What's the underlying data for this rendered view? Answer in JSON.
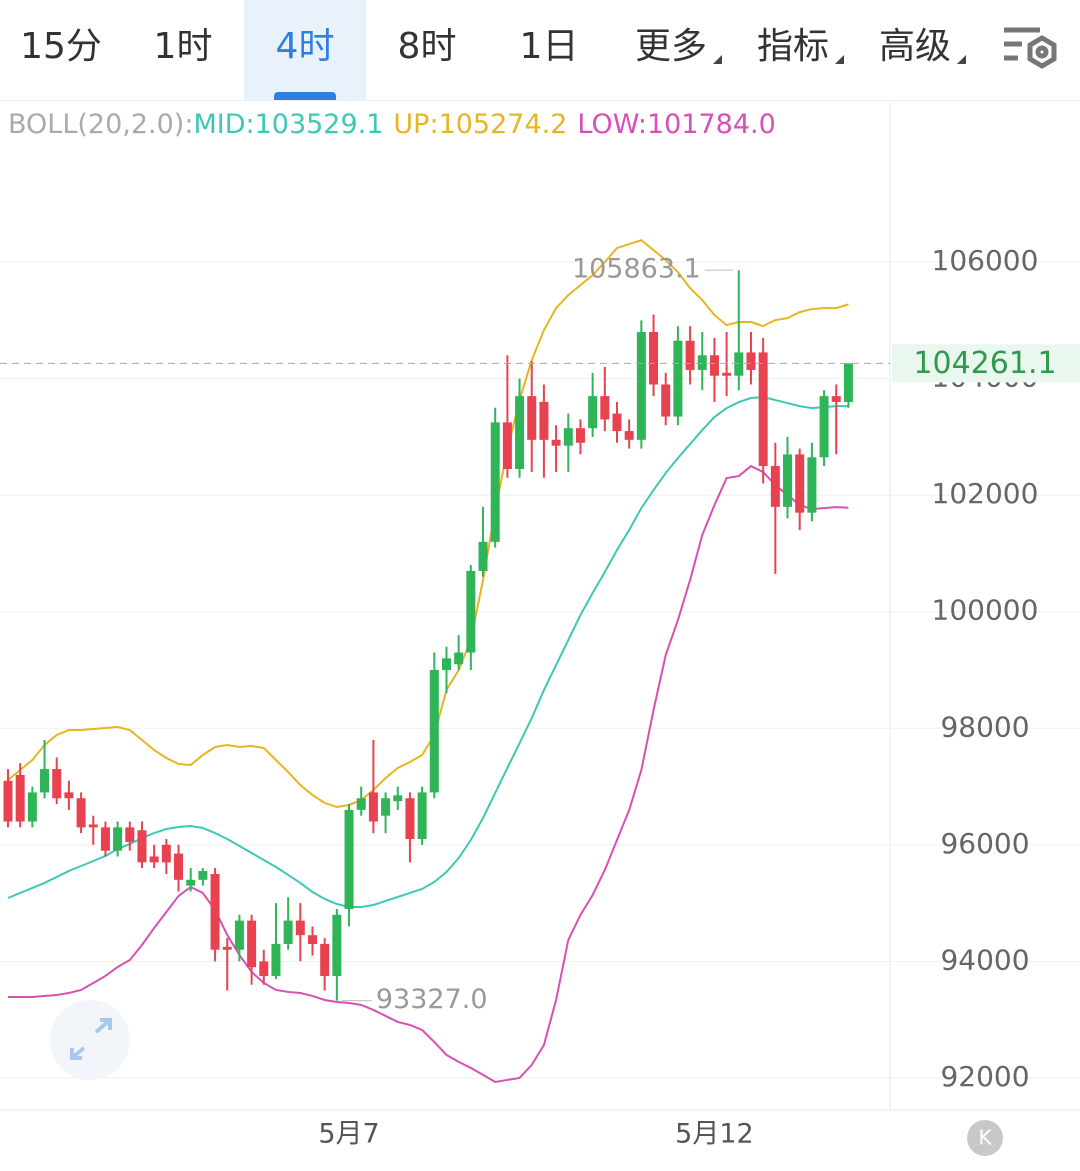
{
  "tabs": [
    "15分",
    "1时",
    "4时",
    "8时",
    "1日",
    "更多",
    "指标",
    "高级"
  ],
  "active_tab": 2,
  "corner_button": "K",
  "chart_data": {
    "type": "candlestick",
    "indicator_label": "BOLL(20,2.0):",
    "categories": [
      null,
      null,
      null,
      null,
      null,
      null,
      null,
      null,
      null,
      null,
      null,
      null,
      null,
      null,
      null,
      null,
      null,
      null,
      null,
      null,
      null,
      null,
      null,
      null,
      null,
      null,
      null,
      null,
      "5月7",
      null,
      null,
      null,
      null,
      null,
      null,
      null,
      null,
      null,
      null,
      null,
      null,
      null,
      null,
      null,
      null,
      null,
      null,
      null,
      null,
      null,
      null,
      null,
      null,
      null,
      null,
      null,
      null,
      null,
      "5月12",
      null,
      null,
      null,
      null,
      null,
      null,
      null,
      null,
      null,
      null,
      null
    ],
    "ohlc": {
      "up_color": "#2fb457",
      "down_color": "#e8414f",
      "open": [
        97100,
        97200,
        96400,
        96900,
        97300,
        96900,
        96800,
        96350,
        96300,
        95900,
        96300,
        96250,
        95800,
        96000,
        95850,
        95300,
        95400,
        95500,
        94250,
        94200,
        94700,
        94000,
        93750,
        94300,
        94700,
        94450,
        94300,
        93750,
        94900,
        96600,
        96900,
        96500,
        96750,
        96800,
        96100,
        96900,
        99000,
        99100,
        99300,
        100700,
        101200,
        103250,
        102450,
        103700,
        103600,
        102950,
        102850,
        103150,
        103150,
        103700,
        103400,
        103100,
        102950,
        104800,
        103900,
        103350,
        104650,
        104150,
        104400,
        104100,
        104050,
        104450,
        104450,
        102500,
        101800,
        102700,
        101700,
        102650,
        103700,
        103600
      ],
      "high": [
        97300,
        97400,
        97000,
        97800,
        97500,
        97100,
        96900,
        96500,
        96400,
        96400,
        96400,
        96400,
        96000,
        96100,
        96000,
        95600,
        95600,
        95600,
        94400,
        94800,
        94800,
        94200,
        95000,
        95100,
        95000,
        94600,
        94400,
        94900,
        96700,
        97000,
        97800,
        96900,
        97000,
        96900,
        97000,
        99300,
        99400,
        99600,
        100800,
        101800,
        103500,
        104400,
        104000,
        104300,
        103900,
        103200,
        103400,
        103300,
        104100,
        104200,
        103600,
        103300,
        105000,
        105100,
        104100,
        104900,
        104900,
        104800,
        104700,
        104800,
        105863.1,
        104800,
        104700,
        102900,
        103000,
        102800,
        102900,
        103800,
        103900,
        104261.1
      ],
      "low": [
        96300,
        96300,
        96300,
        96800,
        96700,
        96600,
        96200,
        96000,
        95800,
        95800,
        95900,
        95600,
        95600,
        95500,
        95200,
        95200,
        95300,
        94000,
        93500,
        94000,
        93600,
        93600,
        93700,
        94200,
        94000,
        94100,
        93500,
        93327,
        94600,
        96500,
        96200,
        96200,
        96600,
        95700,
        96000,
        96800,
        98600,
        99000,
        99000,
        100600,
        101100,
        102300,
        102300,
        102400,
        102300,
        102400,
        102400,
        102700,
        103000,
        103100,
        102900,
        102800,
        102800,
        103700,
        103200,
        103200,
        103900,
        103800,
        103600,
        103700,
        103800,
        103900,
        102200,
        100650,
        101600,
        101400,
        101550,
        102500,
        102700,
        103500
      ],
      "close": [
        96400,
        96400,
        96900,
        97300,
        96800,
        96800,
        96300,
        96300,
        95900,
        96300,
        96050,
        95700,
        95700,
        95700,
        95400,
        95400,
        95550,
        94200,
        94200,
        94700,
        93900,
        93750,
        94300,
        94700,
        94450,
        94300,
        93750,
        94800,
        96600,
        96800,
        96400,
        96800,
        96850,
        96100,
        96900,
        99000,
        99200,
        99300,
        100700,
        101200,
        103250,
        102450,
        103700,
        102950,
        102950,
        102850,
        103150,
        102900,
        103700,
        103300,
        103100,
        102950,
        104800,
        103900,
        103350,
        104650,
        104150,
        104400,
        104050,
        104050,
        104450,
        104150,
        102500,
        101800,
        102700,
        101700,
        102650,
        103700,
        103600,
        104261.1
      ]
    },
    "series": [
      {
        "name": "MID:103529.1",
        "color": "#3cc9b4",
        "values": [
          95088,
          95174,
          95260,
          95346,
          95449,
          95552,
          95637,
          95723,
          95809,
          95929,
          96015,
          96117,
          96203,
          96272,
          96306,
          96323,
          96289,
          96203,
          96100,
          95980,
          95860,
          95740,
          95620,
          95483,
          95346,
          95191,
          95071,
          94985,
          94934,
          94934,
          94968,
          95037,
          95105,
          95174,
          95243,
          95363,
          95534,
          95774,
          96083,
          96461,
          96890,
          97319,
          97747,
          98176,
          98657,
          99086,
          99515,
          99944,
          100321,
          100681,
          101059,
          101402,
          101779,
          102088,
          102380,
          102637,
          102877,
          103118,
          103341,
          103495,
          103598,
          103667,
          103684,
          103632,
          103581,
          103529,
          103495,
          103512,
          103529,
          103529.1
        ]
      },
      {
        "name": "UP:105274.2",
        "color": "#e8b520",
        "values": [
          97113,
          97284,
          97456,
          97713,
          97885,
          97970,
          97970,
          97988,
          98005,
          98022,
          97970,
          97799,
          97627,
          97490,
          97387,
          97370,
          97542,
          97679,
          97713,
          97679,
          97696,
          97662,
          97456,
          97250,
          97027,
          96855,
          96718,
          96649,
          96684,
          96770,
          96941,
          97147,
          97319,
          97422,
          97542,
          97885,
          98657,
          99000,
          99515,
          100544,
          101745,
          102775,
          103632,
          104318,
          104833,
          105210,
          105434,
          105605,
          105777,
          106000,
          106240,
          106309,
          106377,
          106206,
          106034,
          105828,
          105554,
          105348,
          105091,
          104919,
          104971,
          104971,
          104902,
          105005,
          105039,
          105142,
          105194,
          105211,
          105211,
          105274.2
        ]
      },
      {
        "name": "LOW:101784.0",
        "color": "#d94fb4",
        "values": [
          93389,
          93389,
          93389,
          93407,
          93424,
          93458,
          93510,
          93630,
          93750,
          93904,
          94024,
          94282,
          94574,
          94848,
          95123,
          95277,
          95174,
          94882,
          94453,
          94110,
          93818,
          93630,
          93510,
          93476,
          93458,
          93407,
          93338,
          93304,
          93286,
          93252,
          93167,
          93064,
          92961,
          92909,
          92823,
          92618,
          92395,
          92275,
          92172,
          92052,
          91931,
          91966,
          92000,
          92223,
          92566,
          93338,
          94368,
          94797,
          95140,
          95569,
          96083,
          96598,
          97284,
          98314,
          99257,
          99858,
          100544,
          101316,
          101831,
          102294,
          102328,
          102500,
          102397,
          102174,
          102002,
          101831,
          101762,
          101779,
          101796,
          101784
        ]
      }
    ],
    "ylim": [
      91450,
      108730
    ],
    "yticks": [
      92000,
      94000,
      96000,
      98000,
      100000,
      102000,
      104000,
      106000
    ],
    "grid": true,
    "last_price": 104261.1,
    "max_label": 105863.1,
    "min_label": {
      "value": 93327,
      "label": "93327.0"
    }
  }
}
